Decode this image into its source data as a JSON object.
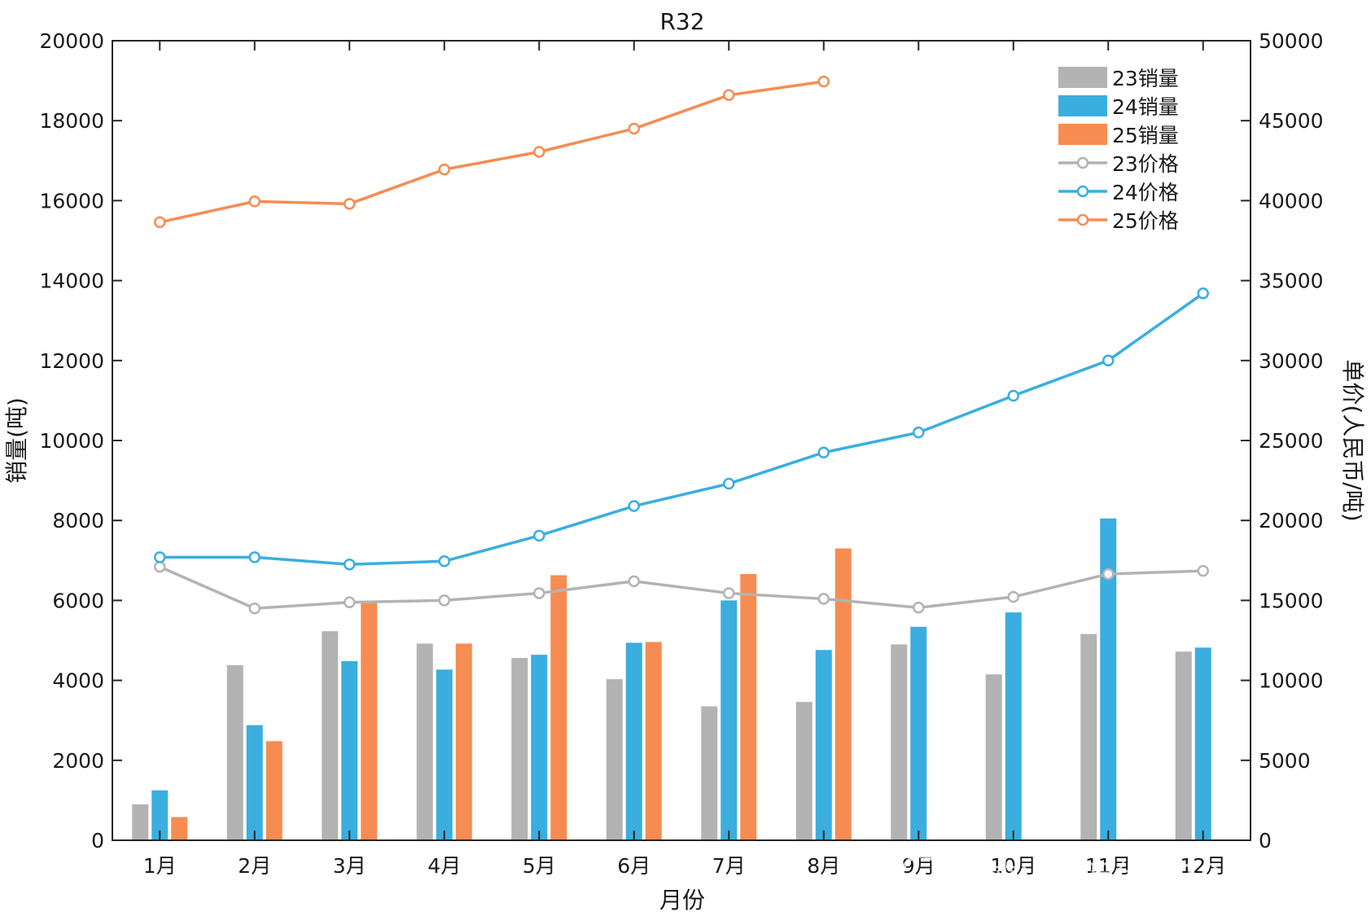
{
  "chart_data": {
    "type": "bar",
    "title": "R32",
    "xlabel": "月份",
    "ylabel": "销量(吨)",
    "y2label": "单价(人民币/吨)",
    "categories": [
      "1月",
      "2月",
      "3月",
      "4月",
      "5月",
      "6月",
      "7月",
      "8月",
      "9月",
      "10月",
      "11月",
      "12月"
    ],
    "ylim": [
      0,
      20000
    ],
    "y2lim": [
      0,
      50000
    ],
    "yticks": [
      "0",
      "2000",
      "4000",
      "6000",
      "8000",
      "10000",
      "12000",
      "14000",
      "16000",
      "18000",
      "20000"
    ],
    "y2ticks": [
      "0",
      "5000",
      "10000",
      "15000",
      "20000",
      "25000",
      "30000",
      "35000",
      "40000",
      "45000",
      "50000"
    ],
    "bar_series": [
      {
        "name": "23销量",
        "color": "#b3b3b3",
        "values": [
          900,
          4380,
          5230,
          4920,
          4560,
          4030,
          3350,
          3460,
          4900,
          4150,
          5160,
          4720
        ]
      },
      {
        "name": "24销量",
        "color": "#3aaedf",
        "values": [
          1250,
          2880,
          4480,
          4270,
          4640,
          4940,
          6000,
          4760,
          5340,
          5700,
          8050,
          4820
        ]
      },
      {
        "name": "25销量",
        "color": "#f68c52",
        "values": [
          580,
          2480,
          5950,
          4920,
          6630,
          4960,
          6660,
          7300,
          null,
          null,
          null,
          null
        ]
      }
    ],
    "line_series": [
      {
        "name": "23价格",
        "color": "#b3b3b3",
        "axis": "right",
        "values": [
          17100,
          14500,
          14880,
          15000,
          15450,
          16200,
          15450,
          15100,
          14550,
          15220,
          16650,
          16850
        ]
      },
      {
        "name": "24价格",
        "color": "#3aaedf",
        "axis": "right",
        "values": [
          17700,
          17700,
          17250,
          17450,
          19050,
          20900,
          22300,
          24250,
          25500,
          27800,
          30000,
          34200
        ]
      },
      {
        "name": "25价格",
        "color": "#f68c52",
        "axis": "right",
        "values": [
          38650,
          39950,
          39800,
          41950,
          43050,
          44500,
          46600,
          47450,
          null,
          null,
          null,
          null
        ]
      }
    ],
    "legend_position": "top-right",
    "grid": false
  },
  "watermark": {
    "text": "雪球：千万伏特100kv"
  }
}
